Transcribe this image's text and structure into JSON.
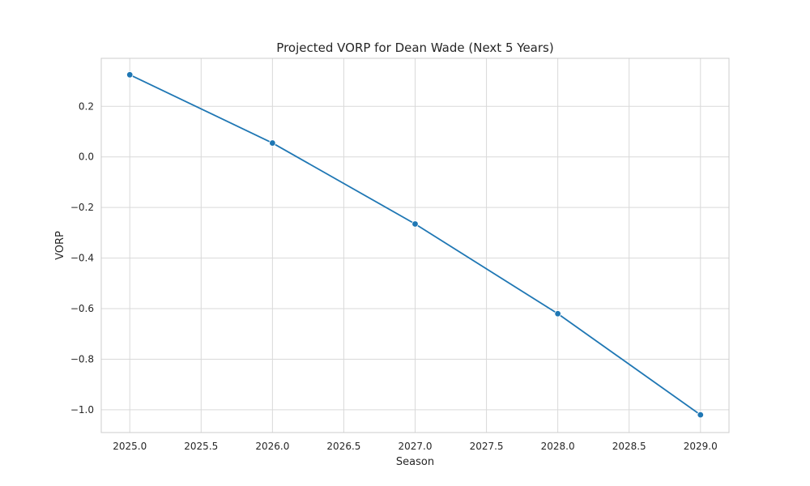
{
  "chart_data": {
    "type": "line",
    "title": "Projected VORP for Dean Wade (Next 5 Years)",
    "xlabel": "Season",
    "ylabel": "VORP",
    "x": [
      2025,
      2026,
      2027,
      2028,
      2029
    ],
    "series": [
      {
        "values": [
          0.325,
          0.055,
          -0.265,
          -0.62,
          -1.02
        ]
      }
    ],
    "xlim": [
      2024.8,
      2029.2
    ],
    "ylim": [
      -1.09,
      0.39
    ],
    "x_ticks": [
      2025.0,
      2025.5,
      2026.0,
      2026.5,
      2027.0,
      2027.5,
      2028.0,
      2028.5,
      2029.0
    ],
    "x_tick_labels": [
      "2025.0",
      "2025.5",
      "2026.0",
      "2026.5",
      "2027.0",
      "2027.5",
      "2028.0",
      "2028.5",
      "2029.0"
    ],
    "y_ticks": [
      0.2,
      0.0,
      -0.2,
      -0.4,
      -0.6,
      -0.8,
      -1.0
    ],
    "y_tick_labels": [
      "0.2",
      "0.0",
      "−0.2",
      "−0.4",
      "−0.6",
      "−0.8",
      "−1.0"
    ],
    "grid": true,
    "line_color": "#1f77b4",
    "grid_color": "#d9d9d9",
    "spine_color": "#cccccc"
  }
}
